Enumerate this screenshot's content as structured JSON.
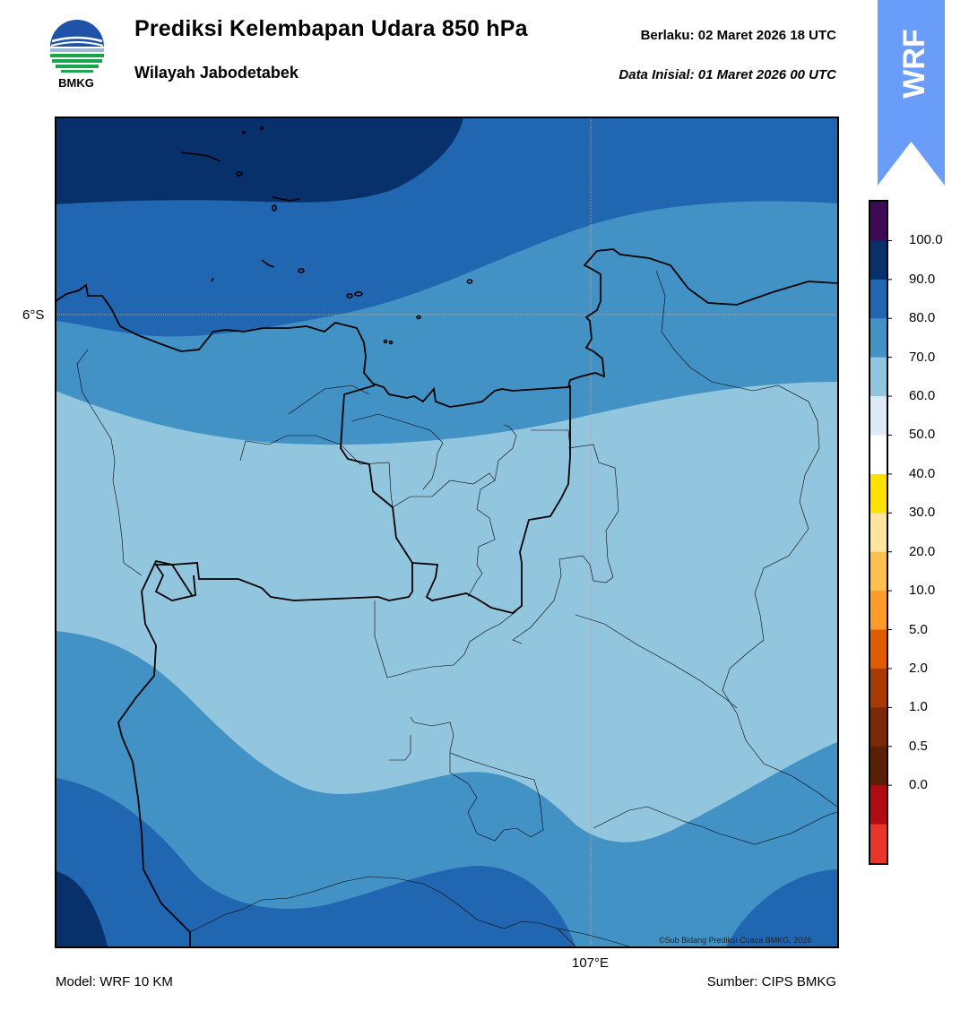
{
  "header": {
    "title": "Prediksi Kelembapan Udara 850 hPa",
    "subtitle": "Wilayah Jabodetabek",
    "valid_time": "Berlaku:  02 Maret 2026 18 UTC",
    "initial_time": "Data Inisial:  01 Maret 2026 00 UTC"
  },
  "logo": {
    "text": "BMKG",
    "icon": "bmkg-logo-icon"
  },
  "badge": {
    "text": "WRF",
    "color": "#6a9dfa"
  },
  "map": {
    "lat_label": "6°S",
    "lon_label": "107°E",
    "copyright": "©Sub Bidang Prediksi Cuaca BMKG, 2026",
    "zone_colors": {
      "deep": "#08306b",
      "high": "#2166b0",
      "mid": "#4292c6",
      "low": "#92c5de"
    }
  },
  "colorbar": {
    "labels": [
      "100.0",
      "90.0",
      "80.0",
      "70.0",
      "60.0",
      "50.0",
      "40.0",
      "30.0",
      "20.0",
      "10.0",
      "5.0",
      "2.0",
      "1.0",
      "0.5",
      "0.0"
    ],
    "colors_top_to_bottom": [
      "#3f0a55",
      "#08306b",
      "#2166b0",
      "#4292c6",
      "#92c5de",
      "#deebf7",
      "#ffffff",
      "#ffe100",
      "#ffe5a0",
      "#ffc04d",
      "#ff9c2a",
      "#e05a00",
      "#a83a05",
      "#7a2a05",
      "#5a2005",
      "#b00d12",
      "#e8362b"
    ]
  },
  "footer": {
    "model": "Model: WRF 10 KM",
    "source": "Sumber: CIPS BMKG"
  }
}
